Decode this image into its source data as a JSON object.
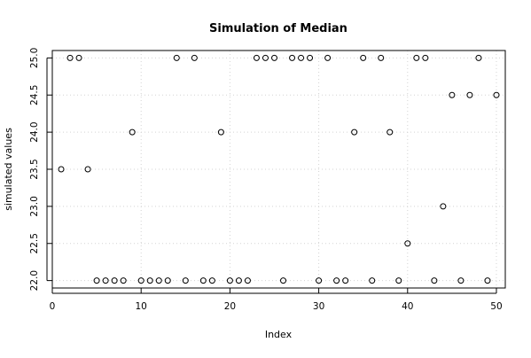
{
  "chart_data": {
    "type": "scatter",
    "title": "Simulation of Median",
    "xlabel": "Index",
    "ylabel": "simulated values",
    "xlim": [
      0,
      51
    ],
    "ylim": [
      21.9,
      25.1
    ],
    "xticks": [
      0,
      10,
      20,
      30,
      40,
      50
    ],
    "yticks": [
      22.0,
      22.5,
      23.0,
      23.5,
      24.0,
      24.5,
      25.0
    ],
    "ytick_labels": [
      "22.0",
      "22.5",
      "23.0",
      "23.5",
      "24.0",
      "24.5",
      "25.0"
    ],
    "grid": true,
    "marker": "open-circle",
    "series": [
      {
        "x": [
          1,
          2,
          3,
          4,
          5,
          6,
          7,
          8,
          9,
          10,
          11,
          12,
          13,
          14,
          15,
          16,
          17,
          18,
          19,
          20,
          21,
          22,
          23,
          24,
          25,
          26,
          27,
          28,
          29,
          30,
          31,
          32,
          33,
          34,
          35,
          36,
          37,
          38,
          39,
          40,
          41,
          42,
          43,
          44,
          45,
          46,
          47,
          48,
          49,
          50
        ],
        "y": [
          23.5,
          25,
          25,
          23.5,
          22,
          22,
          22,
          22,
          24,
          22,
          22,
          22,
          22,
          25,
          22,
          25,
          22,
          22,
          24,
          22,
          22,
          22,
          25,
          25,
          25,
          22,
          25,
          25,
          25,
          22,
          25,
          22,
          22,
          24,
          25,
          22,
          25,
          24,
          22,
          22.5,
          25,
          25,
          22,
          23,
          24.5,
          22,
          24.5,
          25,
          22,
          24.5
        ]
      }
    ]
  }
}
